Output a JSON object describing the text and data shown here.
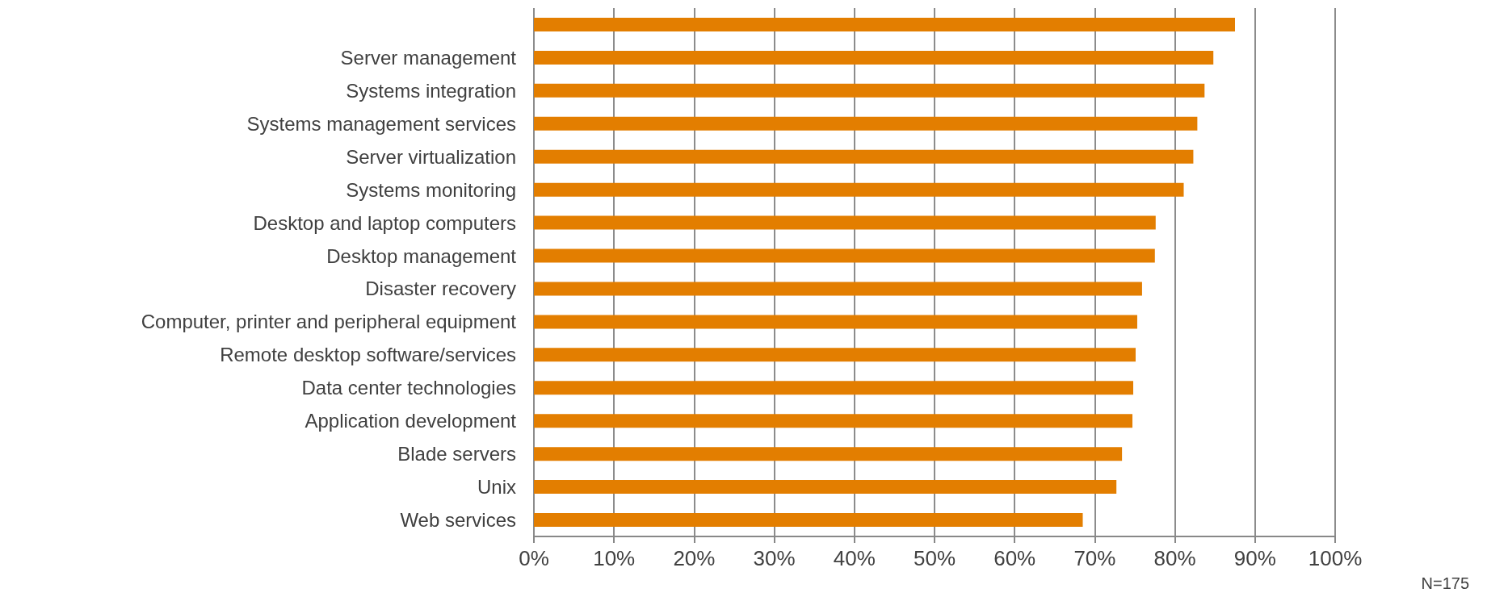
{
  "chart_data": {
    "type": "bar",
    "orientation": "horizontal",
    "categories": [
      null,
      "Server management",
      "Systems integration",
      "Systems management services",
      "Server virtualization",
      "Systems monitoring",
      "Desktop and laptop computers",
      "Desktop management",
      "Disaster recovery",
      "Computer, printer and peripheral equipment",
      "Remote desktop software/services",
      "Data center technologies",
      "Application development",
      "Blade servers",
      "Unix",
      "Web services"
    ],
    "values": [
      87.5,
      84.8,
      83.7,
      82.8,
      82.3,
      81.1,
      77.6,
      77.5,
      75.9,
      75.3,
      75.1,
      74.8,
      74.7,
      73.4,
      72.7,
      68.5
    ],
    "color": "#e37e00",
    "xlim": [
      0,
      100
    ],
    "xticks": [
      {
        "value": 0,
        "label": "0%"
      },
      {
        "value": 10,
        "label": "10%"
      },
      {
        "value": 20,
        "label": "20%"
      },
      {
        "value": 30,
        "label": "30%"
      },
      {
        "value": 40,
        "label": "40%"
      },
      {
        "value": 50,
        "label": "50%"
      },
      {
        "value": 60,
        "label": "60%"
      },
      {
        "value": 70,
        "label": "70%"
      },
      {
        "value": 80,
        "label": "80%"
      },
      {
        "value": 90,
        "label": "90%"
      },
      {
        "value": 100,
        "label": "100%"
      }
    ],
    "grid": "x",
    "annotations": [
      "N=175"
    ]
  }
}
